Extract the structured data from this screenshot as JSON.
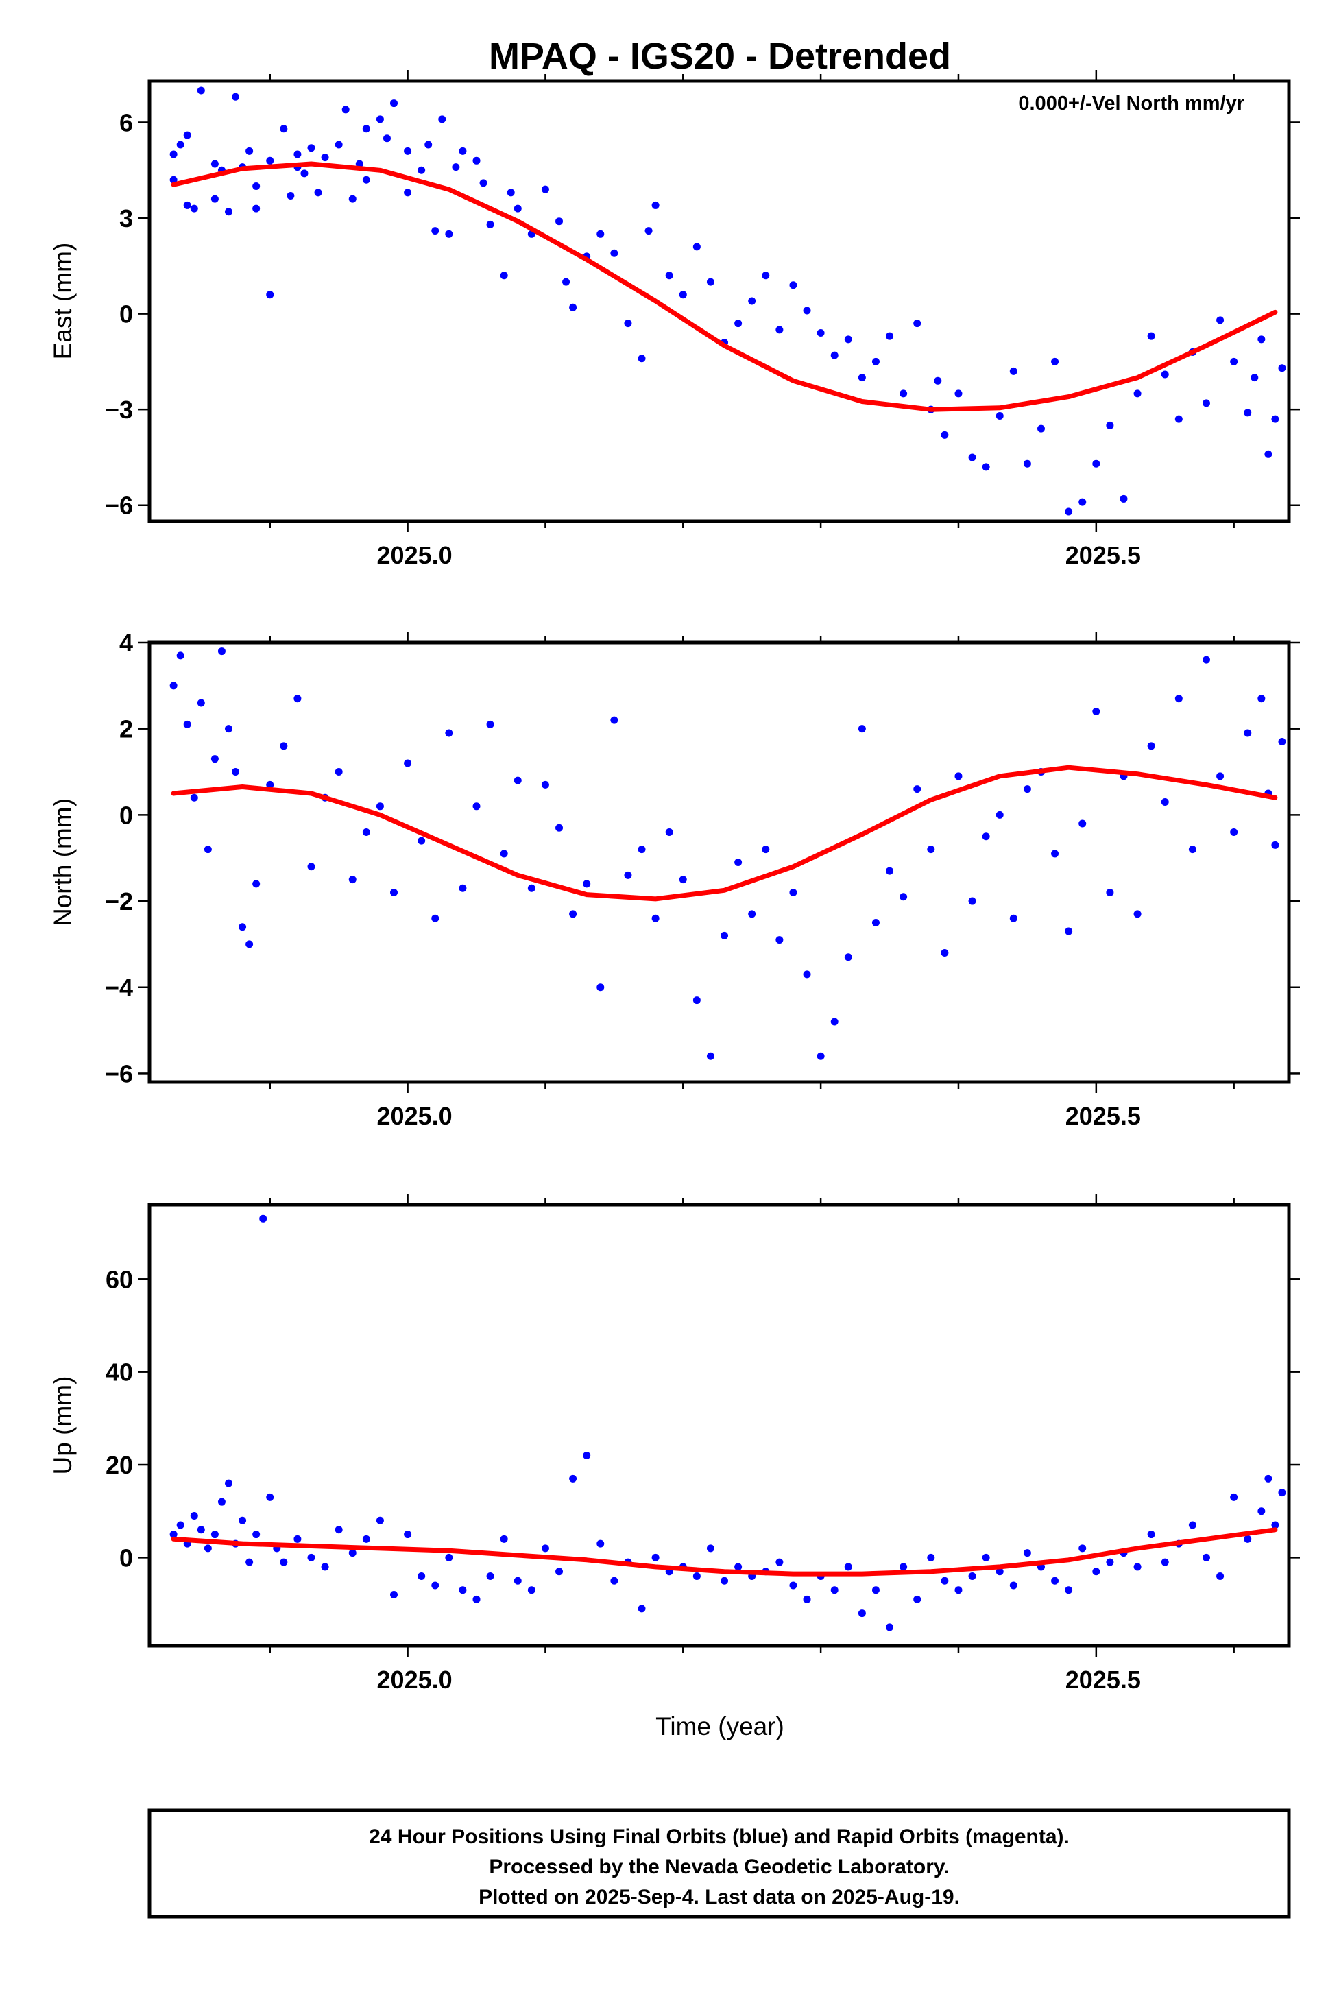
{
  "chart_data": {
    "title": "MPAQ - IGS20 - Detrended",
    "annotation": "0.000+/-Vel North mm/yr",
    "xlabel": "Time (year)",
    "xlim": [
      2024.8125,
      2025.64
    ],
    "xticks": [
      2025.0,
      2025.5
    ],
    "xtick_labels": [
      "2025.0",
      "2025.5"
    ],
    "legend": [
      "24 Hour Positions Using Final Orbits (blue) and Rapid Orbits (magenta).",
      "Processed by the Nevada Geodetic Laboratory.",
      "Plotted on 2025-Sep-4. Last data on 2025-Aug-19."
    ],
    "colors": {
      "points": "#0000ff",
      "model": "#ff0000",
      "frame": "#000000"
    },
    "panels": [
      {
        "type": "scatter",
        "name": "east",
        "ylabel": "East (mm)",
        "ylim": [
          -6.5,
          7.3
        ],
        "yticks": [
          -6,
          -3,
          0,
          3,
          6
        ],
        "ytick_labels": [
          "−6",
          "−3",
          "0",
          "3",
          "6"
        ],
        "series": [
          {
            "name": "Final orbits",
            "type": "scatter",
            "x": [
              2024.83,
              2024.83,
              2024.835,
              2024.84,
              2024.84,
              2024.845,
              2024.85,
              2024.86,
              2024.86,
              2024.865,
              2024.87,
              2024.875,
              2024.88,
              2024.885,
              2024.89,
              2024.89,
              2024.9,
              2024.9,
              2024.91,
              2024.915,
              2024.92,
              2024.92,
              2024.925,
              2024.93,
              2024.935,
              2024.94,
              2024.95,
              2024.955,
              2024.96,
              2024.965,
              2024.97,
              2024.97,
              2024.98,
              2024.985,
              2024.99,
              2025.0,
              2025.0,
              2025.01,
              2025.015,
              2025.02,
              2025.025,
              2025.03,
              2025.035,
              2025.04,
              2025.05,
              2025.055,
              2025.06,
              2025.07,
              2025.075,
              2025.08,
              2025.09,
              2025.1,
              2025.11,
              2025.115,
              2025.12,
              2025.13,
              2025.14,
              2025.15,
              2025.16,
              2025.17,
              2025.175,
              2025.18,
              2025.19,
              2025.2,
              2025.21,
              2025.22,
              2025.23,
              2025.24,
              2025.25,
              2025.26,
              2025.27,
              2025.28,
              2025.29,
              2025.3,
              2025.31,
              2025.32,
              2025.33,
              2025.34,
              2025.35,
              2025.36,
              2025.37,
              2025.38,
              2025.385,
              2025.39,
              2025.4,
              2025.41,
              2025.42,
              2025.43,
              2025.44,
              2025.45,
              2025.46,
              2025.47,
              2025.48,
              2025.49,
              2025.5,
              2025.51,
              2025.52,
              2025.53,
              2025.54,
              2025.55,
              2025.56,
              2025.57,
              2025.58,
              2025.59,
              2025.6,
              2025.61,
              2025.615,
              2025.62,
              2025.625,
              2025.63,
              2025.635
            ],
            "y": [
              5.0,
              4.2,
              5.3,
              3.4,
              5.6,
              3.3,
              7.0,
              4.7,
              3.6,
              4.5,
              3.2,
              6.8,
              4.6,
              5.1,
              4.0,
              3.3,
              0.6,
              4.8,
              5.8,
              3.7,
              4.6,
              5.0,
              4.4,
              5.2,
              3.8,
              4.9,
              5.3,
              6.4,
              3.6,
              4.7,
              5.8,
              4.2,
              6.1,
              5.5,
              6.6,
              3.8,
              5.1,
              4.5,
              5.3,
              2.6,
              6.1,
              2.5,
              4.6,
              5.1,
              4.8,
              4.1,
              2.8,
              1.2,
              3.8,
              3.3,
              2.5,
              3.9,
              2.9,
              1.0,
              0.2,
              1.8,
              2.5,
              1.9,
              -0.3,
              -1.4,
              2.6,
              3.4,
              1.2,
              0.6,
              2.1,
              1.0,
              -0.9,
              -0.3,
              0.4,
              1.2,
              -0.5,
              0.9,
              0.1,
              -0.6,
              -1.3,
              -0.8,
              -2.0,
              -1.5,
              -0.7,
              -2.5,
              -0.3,
              -3.0,
              -2.1,
              -3.8,
              -2.5,
              -4.5,
              -4.8,
              -3.2,
              -1.8,
              -4.7,
              -3.6,
              -1.5,
              -6.2,
              -5.9,
              -4.7,
              -3.5,
              -5.8,
              -2.5,
              -0.7,
              -1.9,
              -3.3,
              -1.2,
              -2.8,
              -0.2,
              -1.5,
              -3.1,
              -2.0,
              -0.8,
              -4.4,
              -3.3,
              -1.7
            ]
          },
          {
            "name": "Seasonal model",
            "type": "line",
            "x": [
              2024.83,
              2024.88,
              2024.93,
              2024.98,
              2025.03,
              2025.08,
              2025.13,
              2025.18,
              2025.23,
              2025.28,
              2025.33,
              2025.38,
              2025.43,
              2025.48,
              2025.53,
              2025.58,
              2025.63
            ],
            "y": [
              4.05,
              4.55,
              4.7,
              4.5,
              3.9,
              2.9,
              1.7,
              0.4,
              -1.0,
              -2.1,
              -2.75,
              -3.0,
              -2.95,
              -2.6,
              -2.0,
              -1.0,
              0.05
            ]
          }
        ]
      },
      {
        "type": "scatter",
        "name": "north",
        "ylabel": "North (mm)",
        "ylim": [
          -6.2,
          4.0
        ],
        "yticks": [
          -6,
          -4,
          -2,
          0,
          2,
          4
        ],
        "ytick_labels": [
          "−6",
          "−4",
          "−2",
          "0",
          "2",
          "4"
        ],
        "series": [
          {
            "name": "Final orbits",
            "type": "scatter",
            "x": [
              2024.83,
              2024.835,
              2024.84,
              2024.845,
              2024.85,
              2024.855,
              2024.86,
              2024.865,
              2024.87,
              2024.875,
              2024.88,
              2024.885,
              2024.89,
              2024.9,
              2024.91,
              2024.92,
              2024.93,
              2024.94,
              2024.95,
              2024.96,
              2024.97,
              2024.98,
              2024.99,
              2025.0,
              2025.01,
              2025.02,
              2025.03,
              2025.04,
              2025.05,
              2025.06,
              2025.07,
              2025.08,
              2025.09,
              2025.1,
              2025.11,
              2025.12,
              2025.13,
              2025.14,
              2025.15,
              2025.16,
              2025.17,
              2025.18,
              2025.19,
              2025.2,
              2025.21,
              2025.22,
              2025.23,
              2025.24,
              2025.25,
              2025.26,
              2025.27,
              2025.28,
              2025.29,
              2025.3,
              2025.31,
              2025.32,
              2025.33,
              2025.34,
              2025.35,
              2025.36,
              2025.37,
              2025.38,
              2025.39,
              2025.4,
              2025.41,
              2025.42,
              2025.43,
              2025.44,
              2025.45,
              2025.46,
              2025.47,
              2025.48,
              2025.49,
              2025.5,
              2025.51,
              2025.52,
              2025.53,
              2025.54,
              2025.55,
              2025.56,
              2025.57,
              2025.58,
              2025.59,
              2025.6,
              2025.61,
              2025.62,
              2025.625,
              2025.63,
              2025.635
            ],
            "y": [
              3.0,
              3.7,
              2.1,
              0.4,
              2.6,
              -0.8,
              1.3,
              3.8,
              2.0,
              1.0,
              -2.6,
              -3.0,
              -1.6,
              0.7,
              1.6,
              2.7,
              -1.2,
              0.4,
              1.0,
              -1.5,
              -0.4,
              0.2,
              -1.8,
              1.2,
              -0.6,
              -2.4,
              1.9,
              -1.7,
              0.2,
              2.1,
              -0.9,
              0.8,
              -1.7,
              0.7,
              -0.3,
              -2.3,
              -1.6,
              -4.0,
              2.2,
              -1.4,
              -0.8,
              -2.4,
              -0.4,
              -1.5,
              -4.3,
              -5.6,
              -2.8,
              -1.1,
              -2.3,
              -0.8,
              -2.9,
              -1.8,
              -3.7,
              -5.6,
              -4.8,
              -3.3,
              2.0,
              -2.5,
              -1.3,
              -1.9,
              0.6,
              -0.8,
              -3.2,
              0.9,
              -2.0,
              -0.5,
              0.0,
              -2.4,
              0.6,
              1.0,
              -0.9,
              -2.7,
              -0.2,
              2.4,
              -1.8,
              0.9,
              -2.3,
              1.6,
              0.3,
              2.7,
              -0.8,
              3.6,
              0.9,
              -0.4,
              1.9,
              2.7,
              0.5,
              -0.7,
              1.7
            ]
          },
          {
            "name": "Seasonal model",
            "type": "line",
            "x": [
              2024.83,
              2024.88,
              2024.93,
              2024.98,
              2025.03,
              2025.08,
              2025.13,
              2025.18,
              2025.23,
              2025.28,
              2025.33,
              2025.38,
              2025.43,
              2025.48,
              2025.53,
              2025.58,
              2025.63
            ],
            "y": [
              0.5,
              0.65,
              0.5,
              0.0,
              -0.7,
              -1.4,
              -1.85,
              -1.95,
              -1.75,
              -1.2,
              -0.45,
              0.35,
              0.9,
              1.1,
              0.95,
              0.7,
              0.4
            ]
          }
        ]
      },
      {
        "type": "scatter",
        "name": "up",
        "ylabel": "Up (mm)",
        "ylim": [
          -19,
          76
        ],
        "yticks": [
          0,
          20,
          40,
          60
        ],
        "ytick_labels": [
          "0",
          "20",
          "40",
          "60"
        ],
        "series": [
          {
            "name": "Final orbits",
            "type": "scatter",
            "x": [
              2024.83,
              2024.835,
              2024.84,
              2024.845,
              2024.85,
              2024.855,
              2024.86,
              2024.865,
              2024.87,
              2024.875,
              2024.88,
              2024.885,
              2024.89,
              2024.895,
              2024.9,
              2024.905,
              2024.91,
              2024.92,
              2024.93,
              2024.94,
              2024.95,
              2024.96,
              2024.97,
              2024.98,
              2024.99,
              2025.0,
              2025.01,
              2025.02,
              2025.03,
              2025.04,
              2025.05,
              2025.06,
              2025.07,
              2025.08,
              2025.09,
              2025.1,
              2025.11,
              2025.12,
              2025.13,
              2025.14,
              2025.15,
              2025.16,
              2025.17,
              2025.18,
              2025.19,
              2025.2,
              2025.21,
              2025.22,
              2025.23,
              2025.24,
              2025.25,
              2025.26,
              2025.27,
              2025.28,
              2025.29,
              2025.3,
              2025.31,
              2025.32,
              2025.33,
              2025.34,
              2025.35,
              2025.36,
              2025.37,
              2025.38,
              2025.39,
              2025.4,
              2025.41,
              2025.42,
              2025.43,
              2025.44,
              2025.45,
              2025.46,
              2025.47,
              2025.48,
              2025.49,
              2025.5,
              2025.51,
              2025.52,
              2025.53,
              2025.54,
              2025.55,
              2025.56,
              2025.57,
              2025.58,
              2025.59,
              2025.6,
              2025.61,
              2025.62,
              2025.625,
              2025.63,
              2025.635
            ],
            "y": [
              5,
              7,
              3,
              9,
              6,
              2,
              5,
              12,
              16,
              3,
              8,
              -1,
              5,
              73,
              13,
              2,
              -1,
              4,
              0,
              -2,
              6,
              1,
              4,
              8,
              -8,
              5,
              -4,
              -6,
              0,
              -7,
              -9,
              -4,
              4,
              -5,
              -7,
              2,
              -3,
              17,
              22,
              3,
              -5,
              -1,
              -11,
              0,
              -3,
              -2,
              -4,
              2,
              -5,
              -2,
              -4,
              -3,
              -1,
              -6,
              -9,
              -4,
              -7,
              -2,
              -12,
              -7,
              -15,
              -2,
              -9,
              0,
              -5,
              -7,
              -4,
              0,
              -3,
              -6,
              1,
              -2,
              -5,
              -7,
              2,
              -3,
              -1,
              1,
              -2,
              5,
              -1,
              3,
              7,
              0,
              -4,
              13,
              4,
              10,
              17,
              7,
              14
            ]
          },
          {
            "name": "Seasonal model",
            "type": "line",
            "x": [
              2024.83,
              2024.88,
              2024.93,
              2024.98,
              2025.03,
              2025.08,
              2025.13,
              2025.18,
              2025.23,
              2025.28,
              2025.33,
              2025.38,
              2025.43,
              2025.48,
              2025.53,
              2025.58,
              2025.63
            ],
            "y": [
              4,
              3,
              2.5,
              2,
              1.5,
              0.5,
              -0.5,
              -2,
              -3,
              -3.5,
              -3.5,
              -3,
              -2,
              -0.5,
              2,
              4,
              6
            ]
          }
        ]
      }
    ]
  }
}
